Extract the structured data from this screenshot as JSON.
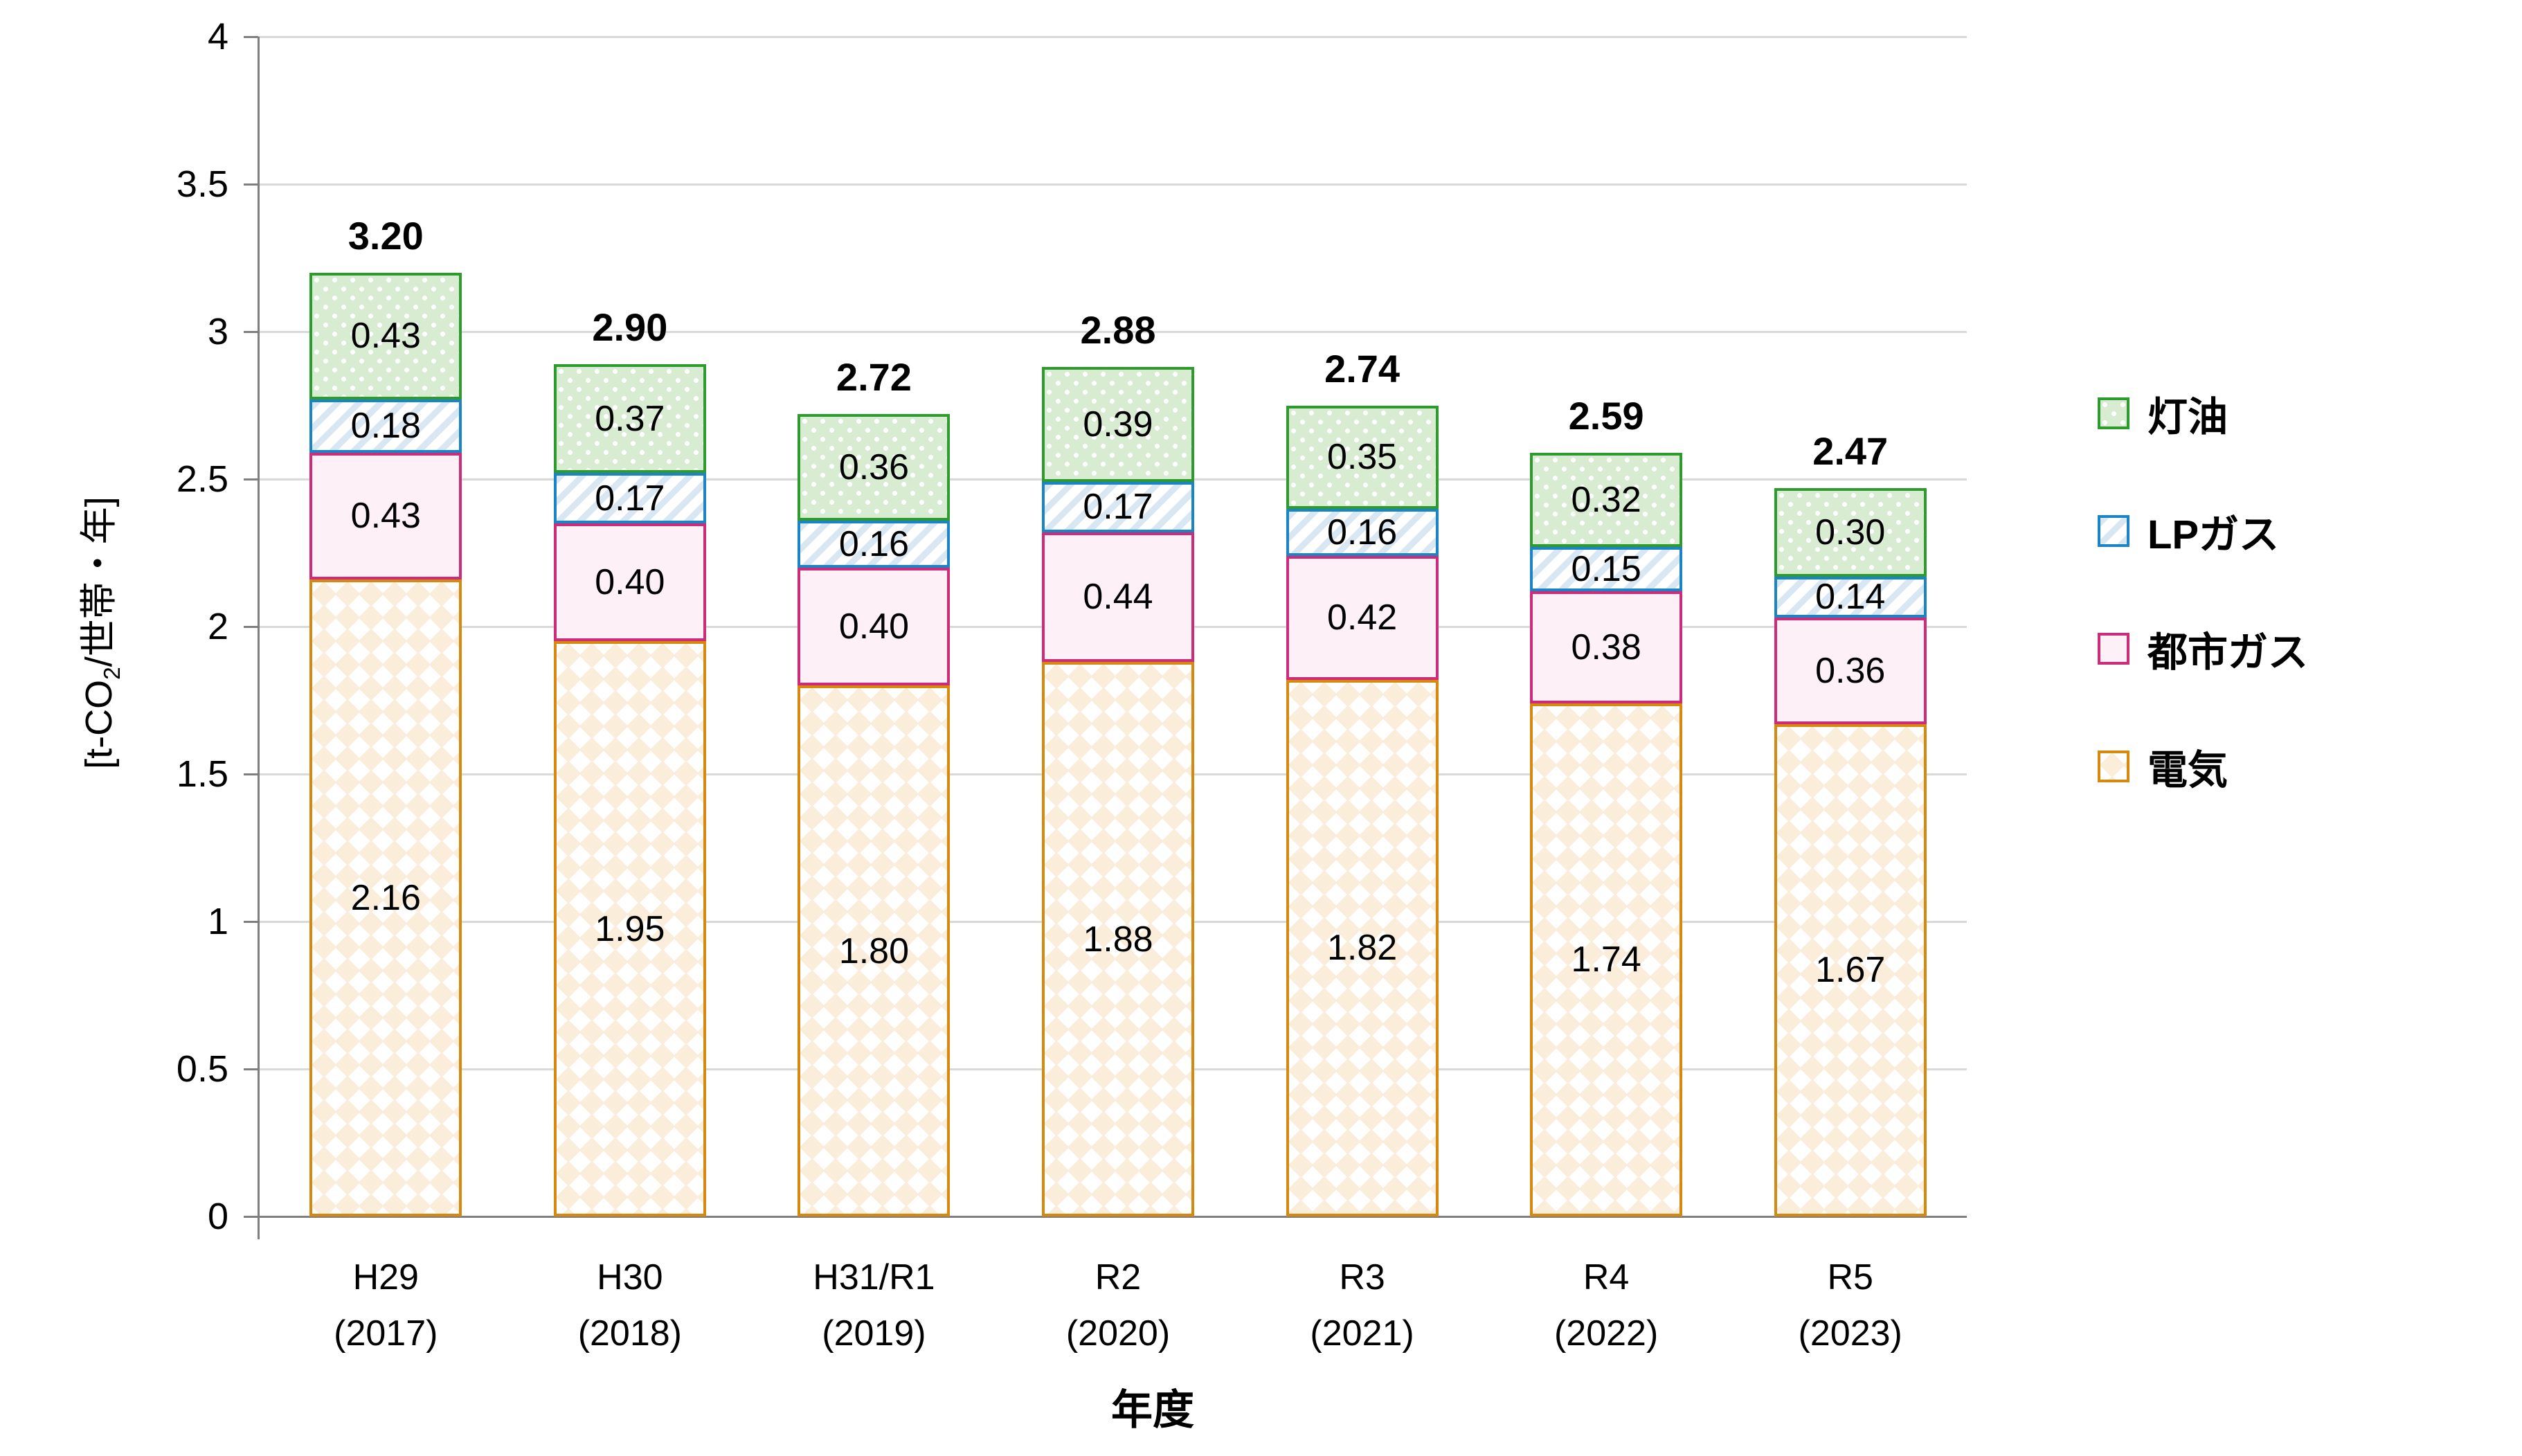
{
  "chart_data": {
    "type": "bar",
    "stacked": true,
    "xlabel": "年度",
    "ylabel_pre": "[t-CO",
    "ylabel_sub": "2",
    "ylabel_post": "/世帯・年]",
    "ylim": [
      0,
      4
    ],
    "ytick_step": 0.5,
    "y_tick_labels": [
      "0",
      "0.5",
      "1",
      "1.5",
      "2",
      "2.5",
      "3",
      "3.5",
      "4"
    ],
    "grid": true,
    "legend_position": "right",
    "categories": [
      {
        "line1": "H29",
        "line2": "(2017)"
      },
      {
        "line1": "H30",
        "line2": "(2018)"
      },
      {
        "line1": "H31/R1",
        "line2": "(2019)"
      },
      {
        "line1": "R2",
        "line2": "(2020)"
      },
      {
        "line1": "R3",
        "line2": "(2021)"
      },
      {
        "line1": "R4",
        "line2": "(2022)"
      },
      {
        "line1": "R5",
        "line2": "(2023)"
      }
    ],
    "series": [
      {
        "key": "electricity",
        "name": "電気",
        "pattern": "diamonds",
        "border_color": "#d6880f",
        "fill_color": "#ffffff",
        "pattern_color": "#faedda",
        "values": [
          2.16,
          1.95,
          1.8,
          1.88,
          1.82,
          1.74,
          1.67
        ]
      },
      {
        "key": "city-gas",
        "name": "都市ガス",
        "pattern": "solid",
        "border_color": "#ce2b78",
        "fill_color": "#fdf0f6",
        "pattern_color": "#fdf0f6",
        "values": [
          0.43,
          0.4,
          0.4,
          0.44,
          0.42,
          0.38,
          0.36
        ]
      },
      {
        "key": "lp-gas",
        "name": "LPガス",
        "pattern": "stripes",
        "border_color": "#1b84c6",
        "fill_color": "#ffffff",
        "pattern_color": "#d9e7f2",
        "values": [
          0.18,
          0.17,
          0.16,
          0.17,
          0.16,
          0.15,
          0.14
        ]
      },
      {
        "key": "kerosene",
        "name": "灯油",
        "pattern": "dots",
        "border_color": "#2e9b2f",
        "fill_color": "#d8ecd2",
        "pattern_color": "#ffffff",
        "values": [
          0.43,
          0.37,
          0.36,
          0.39,
          0.35,
          0.32,
          0.3
        ]
      }
    ],
    "totals": [
      "3.20",
      "2.90",
      "2.72",
      "2.88",
      "2.74",
      "2.59",
      "2.47"
    ],
    "legend_order": [
      "kerosene",
      "lp-gas",
      "city-gas",
      "electricity"
    ]
  }
}
